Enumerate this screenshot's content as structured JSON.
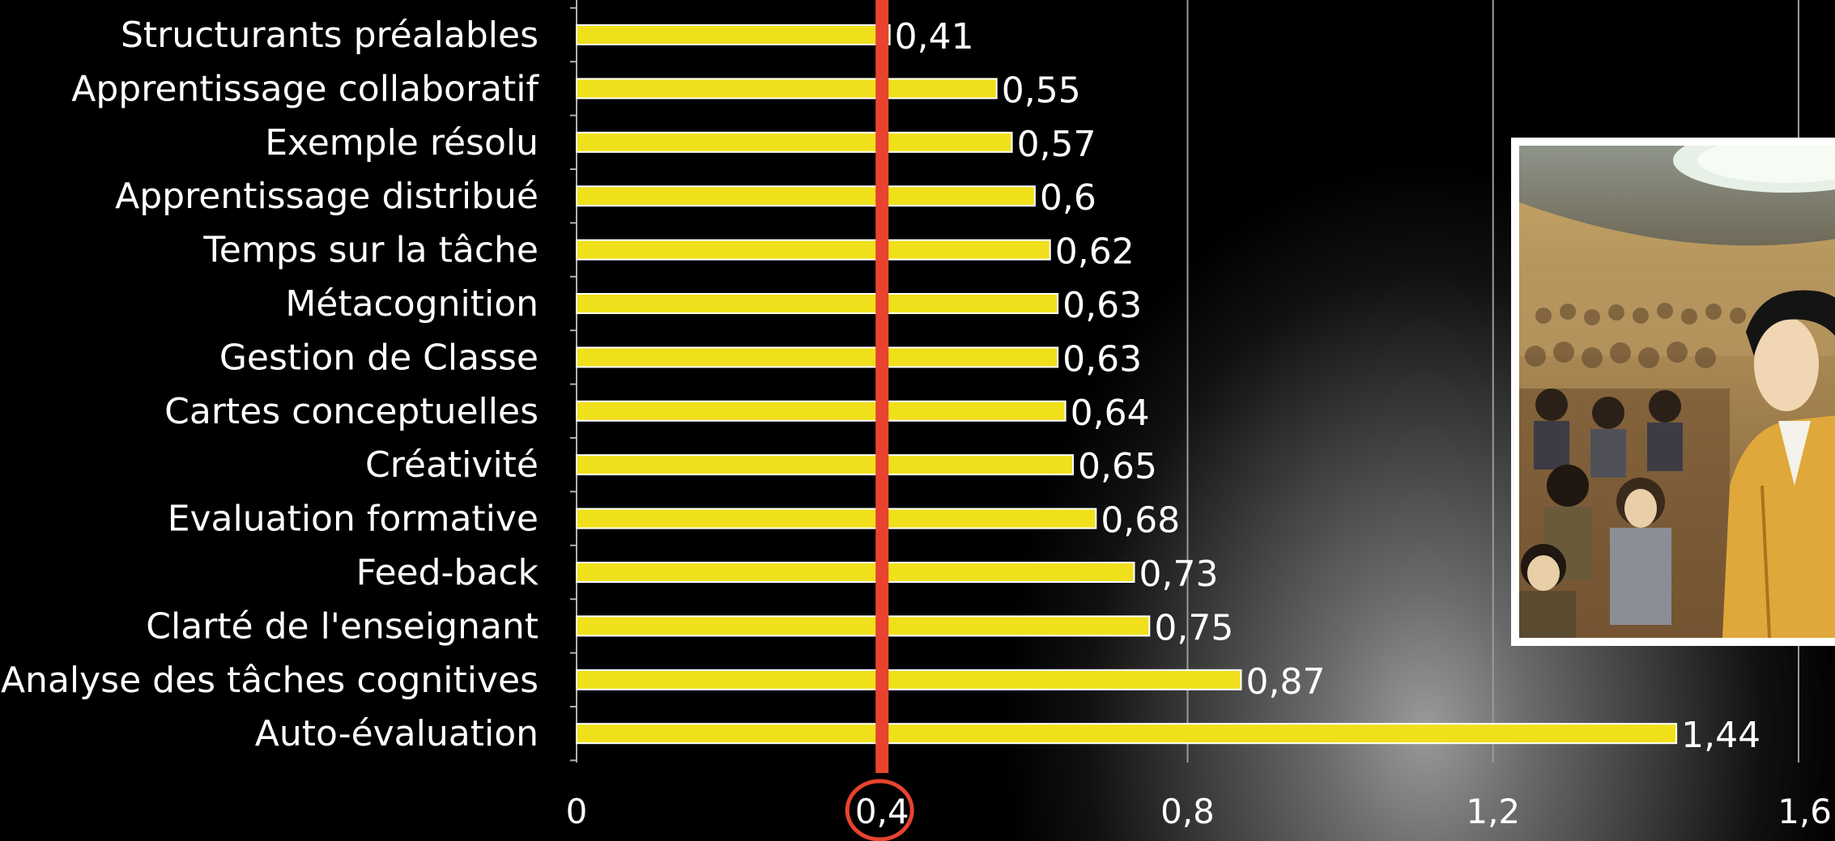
{
  "chart_data": {
    "type": "bar",
    "orientation": "horizontal",
    "categories": [
      "Structurants préalables",
      "Apprentissage collaboratif",
      "Exemple résolu",
      "Apprentissage distribué",
      "Temps sur la tâche",
      "Métacognition",
      "Gestion de Classe",
      "Cartes conceptuelles",
      "Créativité",
      "Evaluation formative",
      "Feed-back",
      "Clarté de l'enseignant",
      "Analyse des tâches cognitives",
      "Auto-évaluation"
    ],
    "values": [
      0.41,
      0.55,
      0.57,
      0.6,
      0.62,
      0.63,
      0.63,
      0.64,
      0.65,
      0.68,
      0.73,
      0.75,
      0.87,
      1.44
    ],
    "value_labels": [
      "0,41",
      "0,55",
      "0,57",
      "0,6",
      "0,62",
      "0,63",
      "0,63",
      "0,64",
      "0,65",
      "0,68",
      "0,73",
      "0,75",
      "0,87",
      "1,44"
    ],
    "xlim": [
      0,
      1.6
    ],
    "x_ticks": [
      0,
      0.4,
      0.8,
      1.2,
      1.6
    ],
    "x_tick_labels": [
      "0",
      "0,4",
      "0,8",
      "1,2",
      "1,6"
    ],
    "reference_line": {
      "value": 0.4,
      "color": "#e8432f"
    },
    "highlighted_tick": "0,4",
    "grid": true,
    "bar_color": "#f0e01c",
    "bar_edge_color": "#ffffff",
    "title": "",
    "xlabel": "",
    "ylabel": ""
  },
  "colors": {
    "background": "#000000",
    "text": "#ffffff",
    "gridline": "#9a9a9a",
    "highlight": "#e8432f"
  },
  "illustration": {
    "description_icon": "teacher-lecture-hall-illustration"
  }
}
